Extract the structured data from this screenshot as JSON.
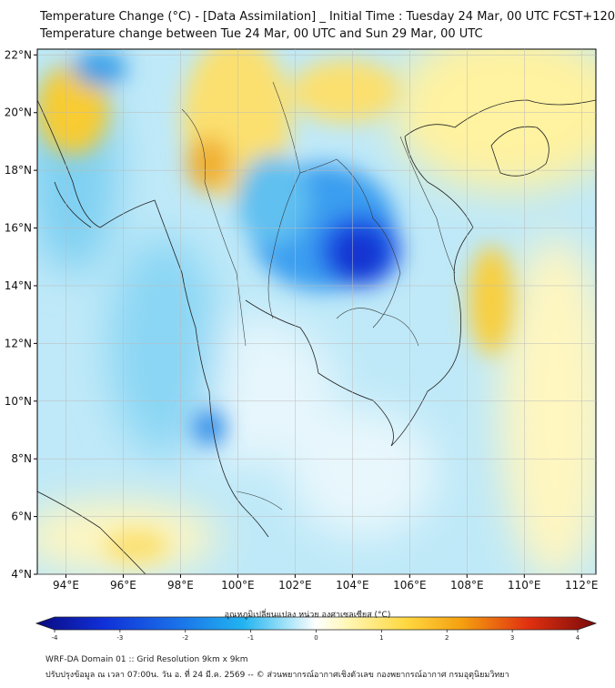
{
  "header": {
    "title_line1": "Temperature Change (°C) - [Data Assimilation] _ Initial Time : Tuesday 24 Mar, 00 UTC FCST+120",
    "title_line2": "Temperature change between Tue 24 Mar, 00 UTC and Sun 29 Mar, 00 UTC"
  },
  "map": {
    "lon_labels": [
      "94°E",
      "96°E",
      "98°E",
      "100°E",
      "102°E",
      "104°E",
      "106°E",
      "108°E",
      "110°E",
      "112°E"
    ],
    "lat_labels": [
      "22°N",
      "20°N",
      "18°N",
      "16°N",
      "14°N",
      "12°N",
      "10°N",
      "8°N",
      "6°N",
      "4°N"
    ],
    "lon_values": [
      94,
      96,
      98,
      100,
      102,
      104,
      106,
      108,
      110,
      112
    ],
    "lat_values": [
      22,
      20,
      18,
      16,
      14,
      12,
      10,
      8,
      6,
      4
    ],
    "lon_range": [
      93,
      112.5
    ],
    "lat_range": [
      4,
      22.2
    ]
  },
  "colorbar": {
    "label": "อุณหภูมิเปลี่ยนแปลง หน่วย องศาเซลเซียส (°C)",
    "tick_labels": [
      "-4",
      "-3",
      "-2",
      "-1",
      "0",
      "1",
      "2",
      "3",
      "4"
    ],
    "tick_values": [
      -4,
      -3,
      -2,
      -1,
      0,
      1,
      2,
      3,
      4
    ],
    "range": [
      -4,
      4
    ],
    "colors": [
      "#0a0a80",
      "#1030d8",
      "#1a70e8",
      "#22b4f0",
      "#a8e4f8",
      "#ffffff",
      "#fff6b0",
      "#ffd840",
      "#f5a010",
      "#e03010",
      "#7a0a0a"
    ]
  },
  "footer": {
    "line1": "WRF-DA Domain 01 :: Grid Resolution 9km x 9km",
    "line2": "ปรับปรุงข้อมูล ณ เวลา 07:00น. วัน อ. ที่ 24 มี.ค. 2569 -- © ส่วนพยากรณ์อากาศเชิงตัวเลข กองพยากรณ์อากาศ กรมอุตุนิยมวิทยา"
  }
}
